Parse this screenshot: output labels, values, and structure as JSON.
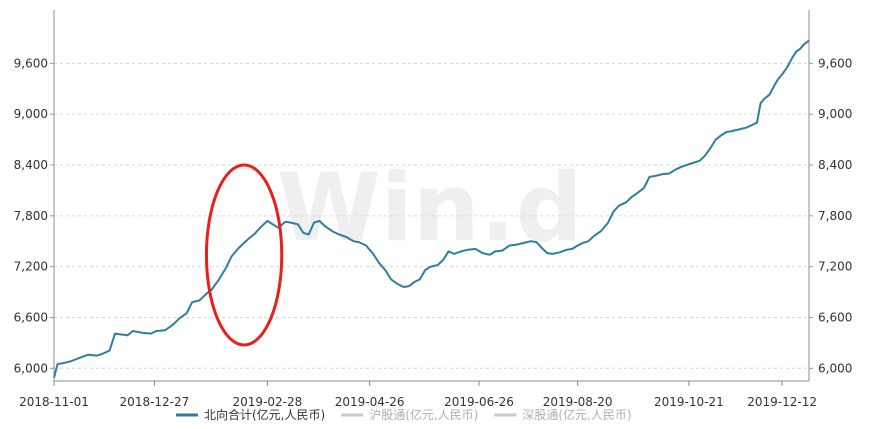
{
  "watermark": "Win.d",
  "chart_data": {
    "type": "line",
    "x_start": "2018-11-01",
    "x_end": "2019-12-27",
    "xticks": [
      "2018-11-01",
      "2018-12-27",
      "2019-02-28",
      "2019-04-26",
      "2019-06-26",
      "2019-08-20",
      "2019-10-21",
      "2019-12-12"
    ],
    "yticks": [
      "6,000",
      "6,600",
      "7,200",
      "7,800",
      "8,400",
      "9,000",
      "9,600"
    ],
    "ytick_values": [
      6000,
      6600,
      7200,
      7800,
      8400,
      9000,
      9600
    ],
    "ylim": [
      5850,
      10230
    ],
    "grid": true,
    "y_axis": "both",
    "legend_position": "bottom",
    "legend": [
      {
        "name": "北向合计(亿元,人民币)",
        "color": "#2d7fa0",
        "active": true
      },
      {
        "name": "沪股通(亿元,人民币)",
        "color": "#c8c8c8",
        "active": false
      },
      {
        "name": "深股通(亿元,人民币)",
        "color": "#c8c8c8",
        "active": false
      }
    ],
    "annotation": {
      "type": "ellipse",
      "color": "#e8201a",
      "from": "2019-01-25",
      "to": "2019-03-08"
    },
    "series": [
      {
        "name": "北向合计(亿元,人民币)",
        "color": "#2d7fa0",
        "points": [
          [
            "2018-11-01",
            5890
          ],
          [
            "2018-11-03",
            6050
          ],
          [
            "2018-11-06",
            6060
          ],
          [
            "2018-11-10",
            6080
          ],
          [
            "2018-11-15",
            6120
          ],
          [
            "2018-11-20",
            6160
          ],
          [
            "2018-11-25",
            6150
          ],
          [
            "2018-11-28",
            6170
          ],
          [
            "2018-12-02",
            6210
          ],
          [
            "2018-12-05",
            6410
          ],
          [
            "2018-12-08",
            6400
          ],
          [
            "2018-12-12",
            6390
          ],
          [
            "2018-12-15",
            6440
          ],
          [
            "2018-12-20",
            6420
          ],
          [
            "2018-12-25",
            6410
          ],
          [
            "2018-12-28",
            6440
          ],
          [
            "2019-01-02",
            6450
          ],
          [
            "2019-01-06",
            6510
          ],
          [
            "2019-01-10",
            6590
          ],
          [
            "2019-01-14",
            6650
          ],
          [
            "2019-01-17",
            6780
          ],
          [
            "2019-01-21",
            6800
          ],
          [
            "2019-01-25",
            6880
          ],
          [
            "2019-01-28",
            6930
          ],
          [
            "2019-02-01",
            7050
          ],
          [
            "2019-02-05",
            7190
          ],
          [
            "2019-02-08",
            7320
          ],
          [
            "2019-02-12",
            7420
          ],
          [
            "2019-02-15",
            7480
          ],
          [
            "2019-02-18",
            7540
          ],
          [
            "2019-02-21",
            7590
          ],
          [
            "2019-02-24",
            7660
          ],
          [
            "2019-02-28",
            7740
          ],
          [
            "2019-03-03",
            7700
          ],
          [
            "2019-03-06",
            7660
          ],
          [
            "2019-03-10",
            7730
          ],
          [
            "2019-03-13",
            7720
          ],
          [
            "2019-03-17",
            7700
          ],
          [
            "2019-03-20",
            7600
          ],
          [
            "2019-03-23",
            7580
          ],
          [
            "2019-03-26",
            7720
          ],
          [
            "2019-03-29",
            7740
          ],
          [
            "2019-04-01",
            7680
          ],
          [
            "2019-04-05",
            7620
          ],
          [
            "2019-04-09",
            7580
          ],
          [
            "2019-04-13",
            7550
          ],
          [
            "2019-04-17",
            7500
          ],
          [
            "2019-04-20",
            7490
          ],
          [
            "2019-04-24",
            7450
          ],
          [
            "2019-04-28",
            7350
          ],
          [
            "2019-05-01",
            7250
          ],
          [
            "2019-05-05",
            7150
          ],
          [
            "2019-05-08",
            7050
          ],
          [
            "2019-05-12",
            6990
          ],
          [
            "2019-05-15",
            6960
          ],
          [
            "2019-05-18",
            6970
          ],
          [
            "2019-05-21",
            7020
          ],
          [
            "2019-05-24",
            7050
          ],
          [
            "2019-05-27",
            7160
          ],
          [
            "2019-05-30",
            7200
          ],
          [
            "2019-06-03",
            7220
          ],
          [
            "2019-06-06",
            7280
          ],
          [
            "2019-06-09",
            7380
          ],
          [
            "2019-06-12",
            7350
          ],
          [
            "2019-06-16",
            7380
          ],
          [
            "2019-06-20",
            7400
          ],
          [
            "2019-06-24",
            7410
          ],
          [
            "2019-06-28",
            7360
          ],
          [
            "2019-07-02",
            7340
          ],
          [
            "2019-07-05",
            7380
          ],
          [
            "2019-07-09",
            7390
          ],
          [
            "2019-07-13",
            7450
          ],
          [
            "2019-07-17",
            7460
          ],
          [
            "2019-07-21",
            7480
          ],
          [
            "2019-07-25",
            7500
          ],
          [
            "2019-07-28",
            7490
          ],
          [
            "2019-07-31",
            7420
          ],
          [
            "2019-08-03",
            7360
          ],
          [
            "2019-08-06",
            7350
          ],
          [
            "2019-08-10",
            7370
          ],
          [
            "2019-08-14",
            7400
          ],
          [
            "2019-08-17",
            7410
          ],
          [
            "2019-08-20",
            7450
          ],
          [
            "2019-08-23",
            7480
          ],
          [
            "2019-08-26",
            7500
          ],
          [
            "2019-08-29",
            7560
          ],
          [
            "2019-09-02",
            7620
          ],
          [
            "2019-09-06",
            7720
          ],
          [
            "2019-09-09",
            7850
          ],
          [
            "2019-09-12",
            7920
          ],
          [
            "2019-09-16",
            7960
          ],
          [
            "2019-09-19",
            8020
          ],
          [
            "2019-09-23",
            8080
          ],
          [
            "2019-09-26",
            8130
          ],
          [
            "2019-09-29",
            8260
          ],
          [
            "2019-10-02",
            8270
          ],
          [
            "2019-10-06",
            8290
          ],
          [
            "2019-10-10",
            8300
          ],
          [
            "2019-10-14",
            8350
          ],
          [
            "2019-10-17",
            8380
          ],
          [
            "2019-10-21",
            8410
          ],
          [
            "2019-10-24",
            8430
          ],
          [
            "2019-10-27",
            8450
          ],
          [
            "2019-10-30",
            8510
          ],
          [
            "2019-11-02",
            8600
          ],
          [
            "2019-11-05",
            8700
          ],
          [
            "2019-11-08",
            8750
          ],
          [
            "2019-11-11",
            8790
          ],
          [
            "2019-11-14",
            8800
          ],
          [
            "2019-11-18",
            8820
          ],
          [
            "2019-11-22",
            8840
          ],
          [
            "2019-11-25",
            8870
          ],
          [
            "2019-11-28",
            8900
          ],
          [
            "2019-11-30",
            9130
          ],
          [
            "2019-12-02",
            9180
          ],
          [
            "2019-12-05",
            9230
          ],
          [
            "2019-12-08",
            9350
          ],
          [
            "2019-12-10",
            9420
          ],
          [
            "2019-12-12",
            9470
          ],
          [
            "2019-12-15",
            9560
          ],
          [
            "2019-12-18",
            9680
          ],
          [
            "2019-12-20",
            9740
          ],
          [
            "2019-12-22",
            9770
          ],
          [
            "2019-12-24",
            9820
          ],
          [
            "2019-12-27",
            9870
          ]
        ]
      }
    ]
  }
}
